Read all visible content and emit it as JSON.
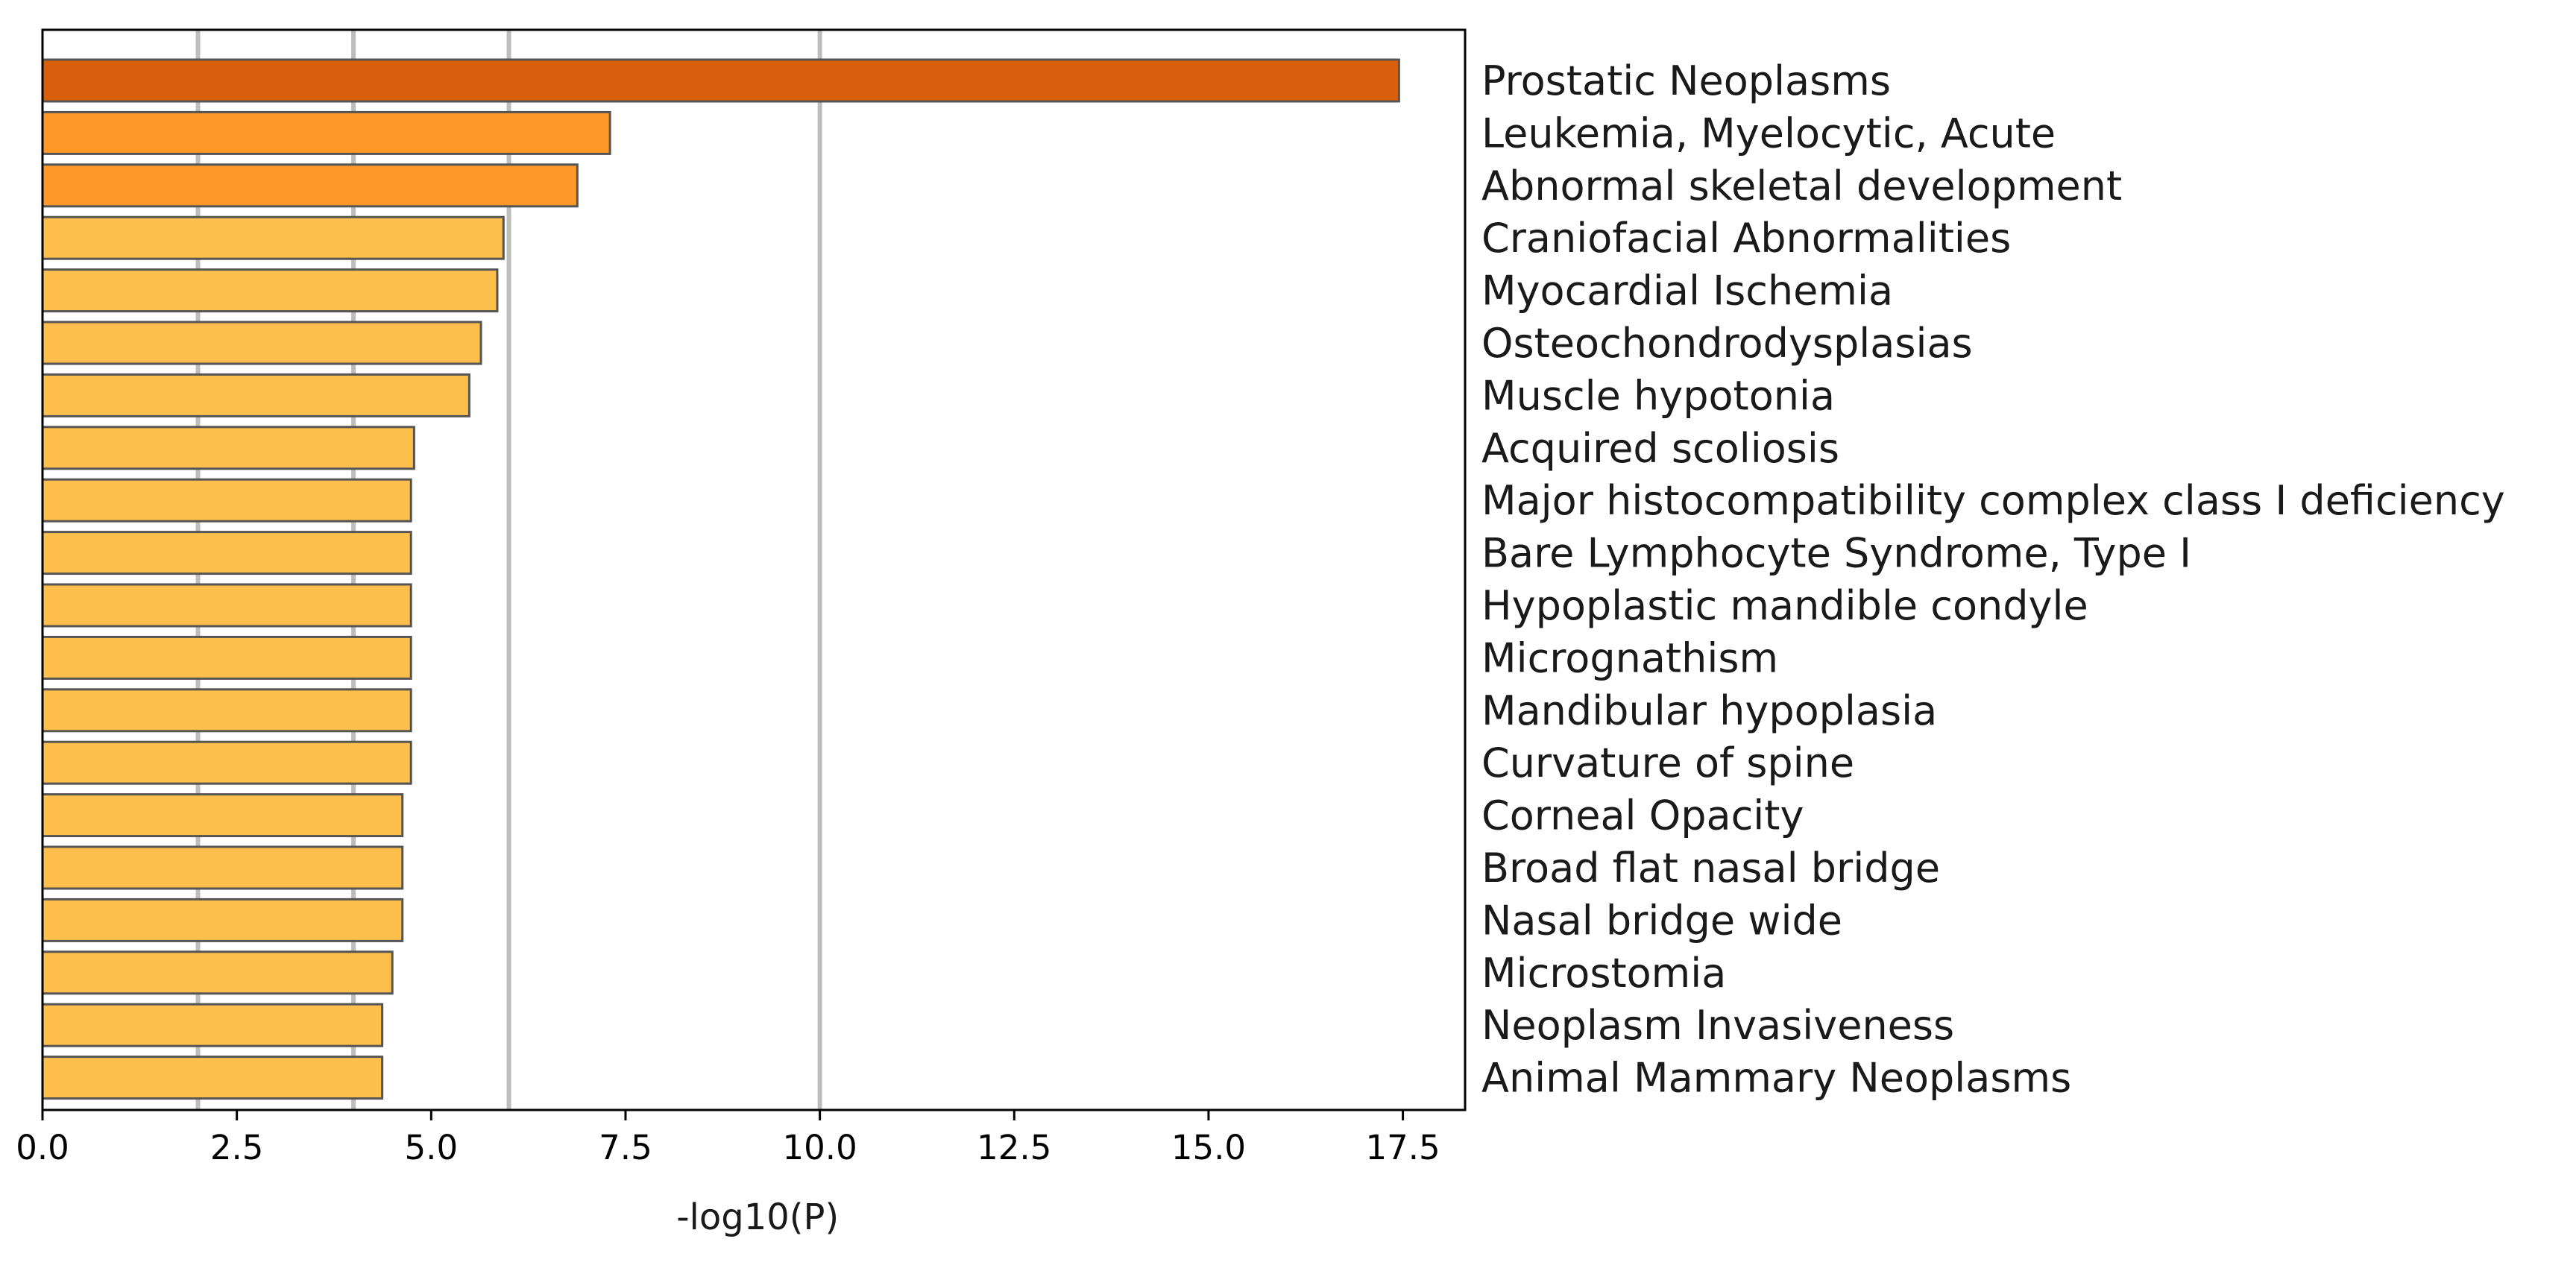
{
  "chart_data": {
    "type": "bar",
    "orientation": "horizontal",
    "title": "",
    "xlabel": "-log10(P)",
    "ylabel": "",
    "xlim": [
      0,
      18.3
    ],
    "x_ticks": [
      0.0,
      2.5,
      5.0,
      7.5,
      10.0,
      12.5,
      15.0,
      17.5
    ],
    "x_tick_labels": [
      "0.0",
      "2.5",
      "5.0",
      "7.5",
      "10.0",
      "12.5",
      "15.0",
      "17.5"
    ],
    "vertical_reference_lines": [
      2,
      4,
      6,
      10
    ],
    "category_label_position": "right",
    "categories": [
      "Prostatic Neoplasms",
      "Leukemia, Myelocytic, Acute",
      "Abnormal skeletal development",
      "Craniofacial Abnormalities",
      "Myocardial Ischemia",
      "Osteochondrodysplasias",
      "Muscle hypotonia",
      "Acquired scoliosis",
      "Major histocompatibility complex class I deficiency",
      "Bare Lymphocyte Syndrome, Type I",
      "Hypoplastic mandible condyle",
      "Micrognathism",
      "Mandibular hypoplasia",
      "Curvature of spine",
      "Corneal Opacity",
      "Broad flat nasal bridge",
      "Nasal bridge wide",
      "Microstomia",
      "Neoplasm Invasiveness",
      "Animal Mammary Neoplasms"
    ],
    "values": [
      17.45,
      7.3,
      6.88,
      5.93,
      5.85,
      5.64,
      5.49,
      4.78,
      4.74,
      4.74,
      4.74,
      4.74,
      4.74,
      4.74,
      4.63,
      4.63,
      4.63,
      4.5,
      4.37,
      4.37
    ],
    "bar_colors": [
      "#d95f0e",
      "#fe9929",
      "#fe9929",
      "#ffbf4d",
      "#ffbf4d",
      "#ffbf4d",
      "#ffbf4d",
      "#ffbf4d",
      "#ffbf4d",
      "#ffbf4d",
      "#ffbf4d",
      "#ffbf4d",
      "#ffbf4d",
      "#ffbf4d",
      "#ffbf4d",
      "#ffbf4d",
      "#ffbf4d",
      "#ffbf4d",
      "#ffbf4d",
      "#ffbf4d"
    ],
    "bar_edge_color": "#555555",
    "grid_line_color": "#bdbdbd",
    "legend": "none"
  }
}
